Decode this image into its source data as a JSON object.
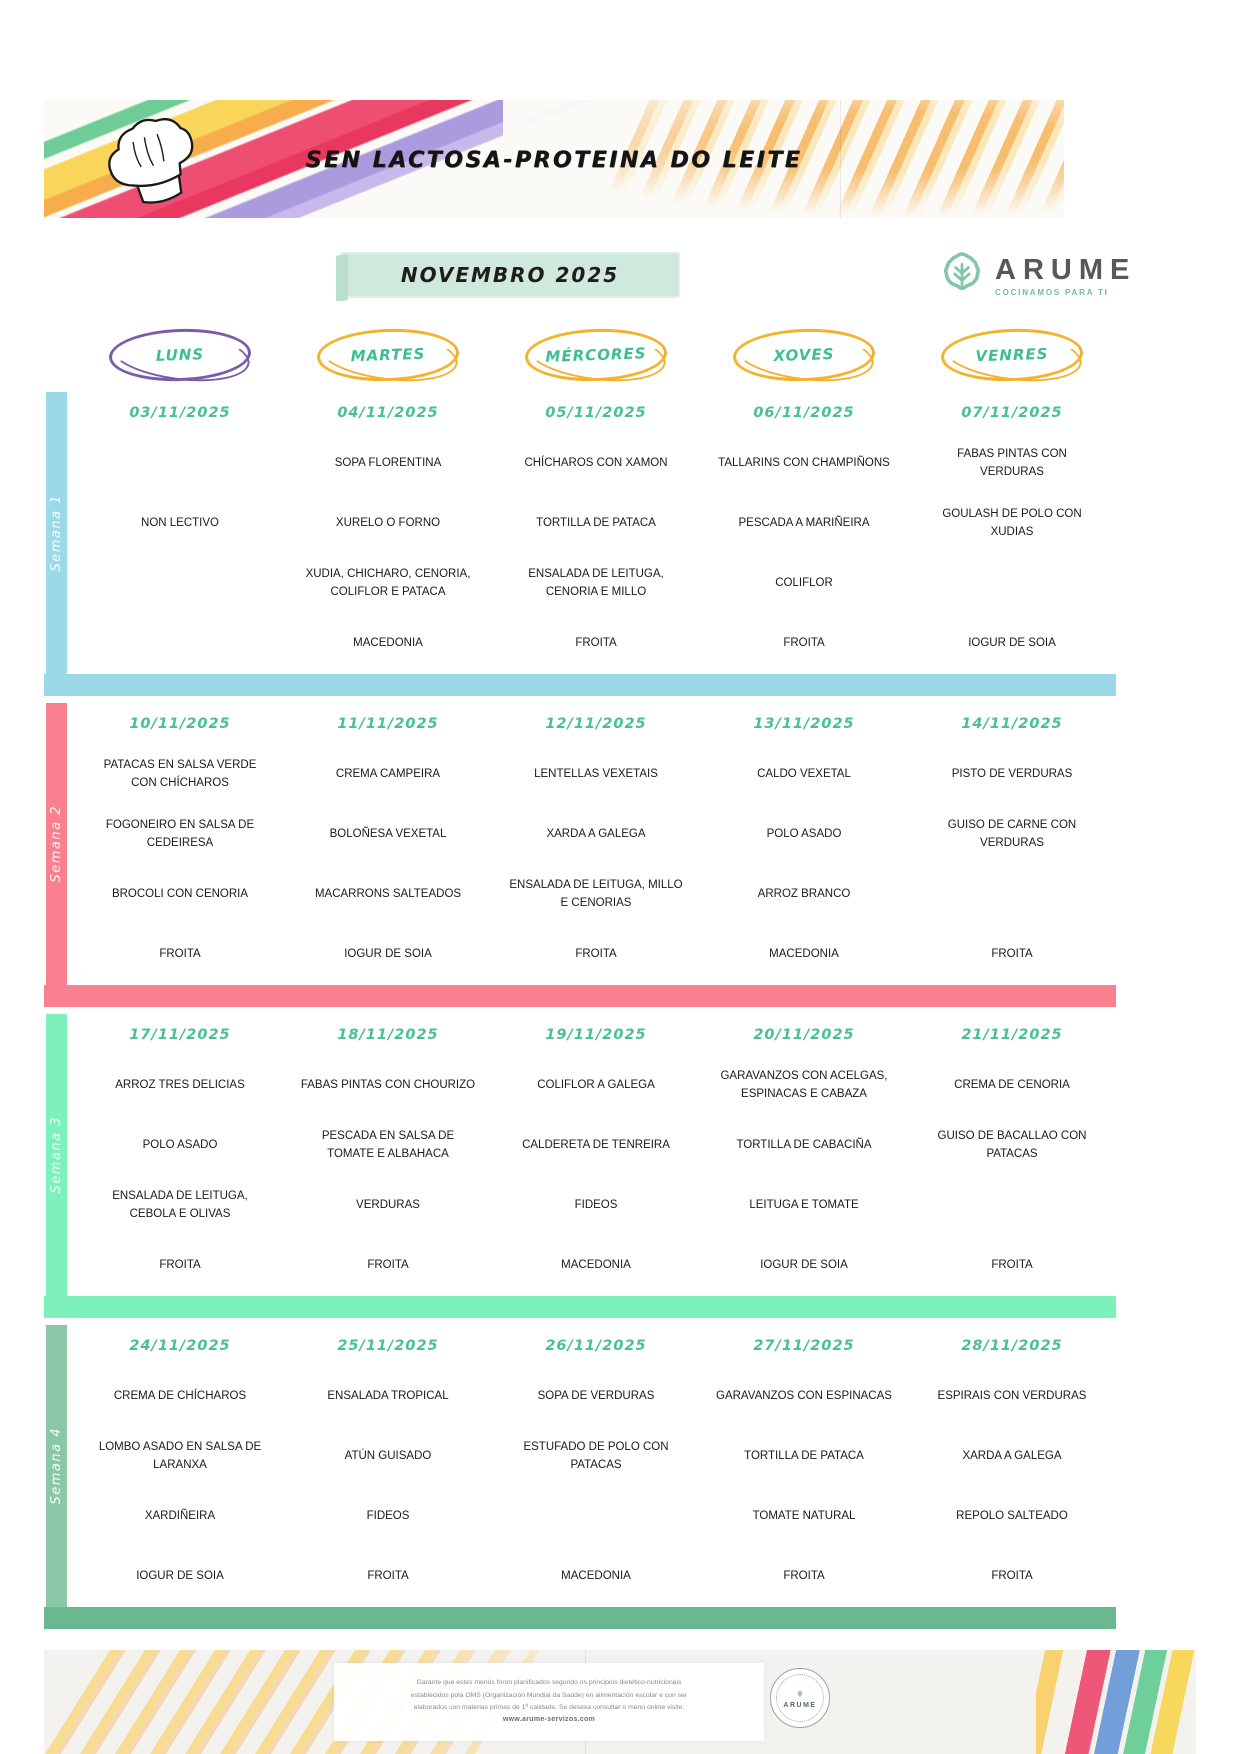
{
  "header": {
    "title": "SEN LACTOSA-PROTEINA DO LEITE"
  },
  "month_banner": "NOVEMBRO 2025",
  "logo": {
    "name": "ARUME",
    "tagline": "COCINAMOS PARA TI"
  },
  "colors": {
    "banner_bg": "#cfe9dc",
    "day_text": "#3fbd92",
    "date_text": "#49bf96",
    "logo_gray": "#57585a",
    "logo_teal": "#6fb8ac",
    "logo_icon": "#7fc7a6"
  },
  "days": [
    {
      "label": "LUNS",
      "color": "#7a5da9"
    },
    {
      "label": "MARTES",
      "color": "#f2b32c"
    },
    {
      "label": "MÉRCORES",
      "color": "#f2b32c"
    },
    {
      "label": "XOVES",
      "color": "#f2b32c"
    },
    {
      "label": "VENRES",
      "color": "#f2b32c"
    }
  ],
  "weeks": [
    {
      "label": "Semana 1",
      "color": "#9bd9e9",
      "bar_color": "#9bd9e9",
      "dates": [
        "03/11/2025",
        "04/11/2025",
        "05/11/2025",
        "06/11/2025",
        "07/11/2025"
      ],
      "rows": [
        [
          "",
          "SOPA FLORENTINA",
          "CHÍCHAROS CON XAMON",
          "TALLARINS CON CHAMPIÑONS",
          "FABAS PINTAS CON VERDURAS"
        ],
        [
          "NON LECTIVO",
          "XURELO O FORNO",
          "TORTILLA DE PATACA",
          "PESCADA A MARIÑEIRA",
          "GOULASH DE POLO CON XUDIAS"
        ],
        [
          "",
          "XUDIA, CHICHARO, CENORIA, COLIFLOR E PATACA",
          "ENSALADA DE LEITUGA, CENORIA E MILLO",
          "COLIFLOR",
          ""
        ],
        [
          "",
          "MACEDONIA",
          "FROITA",
          "FROITA",
          "IOGUR DE SOIA"
        ]
      ]
    },
    {
      "label": "Semana 2",
      "color": "#f9808f",
      "bar_color": "#f9808f",
      "dates": [
        "10/11/2025",
        "11/11/2025",
        "12/11/2025",
        "13/11/2025",
        "14/11/2025"
      ],
      "rows": [
        [
          "PATACAS EN SALSA VERDE CON CHÍCHAROS",
          "CREMA CAMPEIRA",
          "LENTELLAS VEXETAIS",
          "CALDO VEXETAL",
          "PISTO DE VERDURAS"
        ],
        [
          "FOGONEIRO EN SALSA DE CEDEIRESA",
          "BOLOÑESA VEXETAL",
          "XARDA A GALEGA",
          "POLO ASADO",
          "GUISO DE CARNE CON VERDURAS"
        ],
        [
          "BROCOLI CON CENORIA",
          "MACARRONS SALTEADOS",
          "ENSALADA DE LEITUGA, MILLO E CENORIAS",
          "ARROZ BRANCO",
          ""
        ],
        [
          "FROITA",
          "IOGUR DE SOIA",
          "FROITA",
          "MACEDONIA",
          "FROITA"
        ]
      ]
    },
    {
      "label": "Semana 3",
      "color": "#7df0bb",
      "bar_color": "#7df0bb",
      "dates": [
        "17/11/2025",
        "18/11/2025",
        "19/11/2025",
        "20/11/2025",
        "21/11/2025"
      ],
      "rows": [
        [
          "ARROZ TRES DELICIAS",
          "FABAS PINTAS CON CHOURIZO",
          "COLIFLOR A GALEGA",
          "GARAVANZOS CON ACELGAS, ESPINACAS E CABAZA",
          "CREMA DE CENORIA"
        ],
        [
          "POLO ASADO",
          "PESCADA EN SALSA DE TOMATE E ALBAHACA",
          "CALDERETA DE TENREIRA",
          "TORTILLA DE CABACIÑA",
          "GUISO DE BACALLAO CON PATACAS"
        ],
        [
          "ENSALADA DE LEITUGA, CEBOLA E OLIVAS",
          "VERDURAS",
          "FIDEOS",
          "LEITUGA E TOMATE",
          ""
        ],
        [
          "FROITA",
          "FROITA",
          "MACEDONIA",
          "IOGUR DE SOIA",
          "FROITA"
        ]
      ]
    },
    {
      "label": "Semana 4",
      "color": "#8ac7a6",
      "bar_color": "#69b890",
      "dates": [
        "24/11/2025",
        "25/11/2025",
        "26/11/2025",
        "27/11/2025",
        "28/11/2025"
      ],
      "rows": [
        [
          "CREMA DE CHÍCHAROS",
          "ENSALADA TROPICAL",
          "SOPA DE VERDURAS",
          "GARAVANZOS CON ESPINACAS",
          "ESPIRAIS CON VERDURAS"
        ],
        [
          "LOMBO ASADO EN SALSA DE LARANXA",
          "ATÚN GUISADO",
          "ESTUFADO DE POLO CON PATACAS",
          "TORTILLA DE PATACA",
          "XARDA A GALEGA"
        ],
        [
          "XARDIÑEIRA",
          "FIDEOS",
          "",
          "TOMATE NATURAL",
          "REPOLO SALTEADO"
        ],
        [
          "IOGUR DE SOIA",
          "FROITA",
          "MACEDONIA",
          "FROITA",
          "FROITA"
        ]
      ]
    }
  ],
  "footer": {
    "lines": [
      "Garante que estes menús foron planificados segundo os principios dietético-nutricionais",
      "establecidos pola OMS (Organización Mundial da Saúde) en alimentación escolar e con ser",
      "elaborados con materias primas de 1ª calidade. Se desexa consultar o menú online visite:"
    ],
    "url": "www.arume-servizos.com",
    "stamp_label": "ARUME"
  }
}
